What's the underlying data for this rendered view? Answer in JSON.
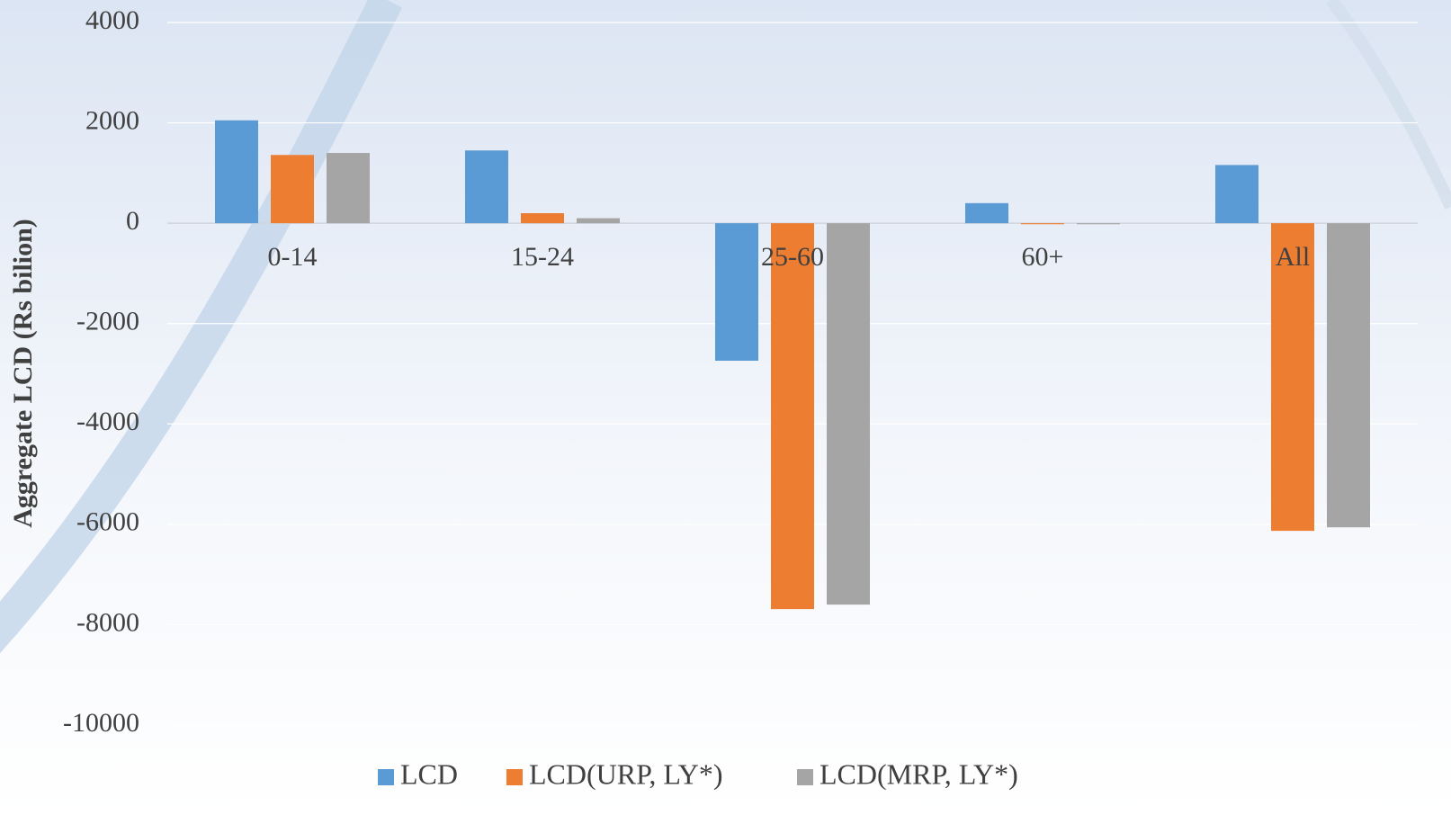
{
  "chart_data": {
    "type": "bar",
    "y_label": "Aggregate LCD (Rs bilion)",
    "categories": [
      "0-14",
      "15-24",
      "25-60",
      "60+",
      "All"
    ],
    "series": [
      {
        "name": "LCD",
        "color": "#5b9bd5",
        "values": [
          2050,
          1450,
          -2740,
          400,
          1160
        ]
      },
      {
        "name": "LCD(URP, LY*)",
        "color": "#ed7d31",
        "values": [
          1360,
          200,
          -7690,
          -20,
          -6130
        ]
      },
      {
        "name": "LCD(MRP, LY*)",
        "color": "#a5a5a5",
        "values": [
          1400,
          100,
          -7600,
          -20,
          -6060
        ]
      }
    ],
    "ylim": [
      -10000,
      4000
    ],
    "yticks": [
      -10000,
      -8000,
      -6000,
      -4000,
      -2000,
      0,
      2000,
      4000
    ],
    "grid": true
  }
}
